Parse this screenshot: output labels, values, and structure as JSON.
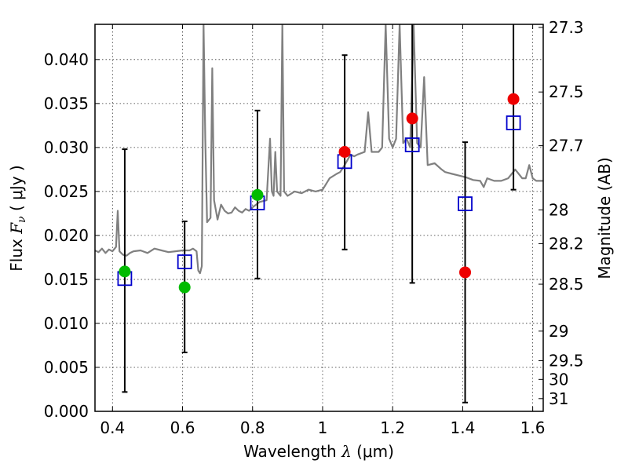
{
  "chart_data": {
    "type": "scatter",
    "title": "",
    "xlabel_parts": {
      "prefix": "Wavelength  ",
      "symbol": "λ",
      "unit": " (μm)"
    },
    "ylabel_parts": {
      "prefix": "Flux  ",
      "symbol": "F",
      "subscript": "ν",
      "unit": "  ( μJy )"
    },
    "y2label": "Magnitude (AB)",
    "xlim": [
      0.35,
      1.63
    ],
    "ylim": [
      0.0,
      0.044
    ],
    "grid": true,
    "colors": {
      "spectrum": "#808080",
      "model_points": "#0000cc",
      "obs_green": "#00bb00",
      "obs_red": "#ee0000",
      "errorbars": "#000000"
    },
    "x_ticks": [
      {
        "value": 0.4,
        "label": "0.4"
      },
      {
        "value": 0.6,
        "label": "0.6"
      },
      {
        "value": 0.8,
        "label": "0.8"
      },
      {
        "value": 1.0,
        "label": "1"
      },
      {
        "value": 1.2,
        "label": "1.2"
      },
      {
        "value": 1.4,
        "label": "1.4"
      },
      {
        "value": 1.6,
        "label": "1.6"
      }
    ],
    "y_ticks": [
      {
        "value": 0.0,
        "label": "0.000"
      },
      {
        "value": 0.005,
        "label": "0.005"
      },
      {
        "value": 0.01,
        "label": "0.010"
      },
      {
        "value": 0.015,
        "label": "0.015"
      },
      {
        "value": 0.02,
        "label": "0.020"
      },
      {
        "value": 0.025,
        "label": "0.025"
      },
      {
        "value": 0.03,
        "label": "0.030"
      },
      {
        "value": 0.035,
        "label": "0.035"
      },
      {
        "value": 0.04,
        "label": "0.040"
      }
    ],
    "y2_ticks": [
      {
        "mag": 27.3,
        "label": "27.3"
      },
      {
        "mag": 27.5,
        "label": "27.5"
      },
      {
        "mag": 27.7,
        "label": "27.7"
      },
      {
        "mag": 28.0,
        "label": "28"
      },
      {
        "mag": 28.2,
        "label": "28.2"
      },
      {
        "mag": 28.5,
        "label": "28.5"
      },
      {
        "mag": 29.0,
        "label": "29"
      },
      {
        "mag": 29.5,
        "label": "29.5"
      },
      {
        "mag": 30.0,
        "label": "30"
      },
      {
        "mag": 31.0,
        "label": "31"
      }
    ],
    "spectrum": [
      [
        0.35,
        0.0183
      ],
      [
        0.36,
        0.0181
      ],
      [
        0.37,
        0.0185
      ],
      [
        0.38,
        0.018
      ],
      [
        0.39,
        0.0184
      ],
      [
        0.4,
        0.0182
      ],
      [
        0.41,
        0.0187
      ],
      [
        0.415,
        0.0228
      ],
      [
        0.42,
        0.0182
      ],
      [
        0.43,
        0.0178
      ],
      [
        0.44,
        0.0177
      ],
      [
        0.45,
        0.018
      ],
      [
        0.46,
        0.0182
      ],
      [
        0.48,
        0.0183
      ],
      [
        0.5,
        0.018
      ],
      [
        0.52,
        0.0185
      ],
      [
        0.54,
        0.0183
      ],
      [
        0.56,
        0.0181
      ],
      [
        0.58,
        0.0182
      ],
      [
        0.6,
        0.0183
      ],
      [
        0.62,
        0.0183
      ],
      [
        0.63,
        0.0185
      ],
      [
        0.64,
        0.0182
      ],
      [
        0.645,
        0.016
      ],
      [
        0.65,
        0.0157
      ],
      [
        0.655,
        0.0165
      ],
      [
        0.66,
        0.044
      ],
      [
        0.665,
        0.031
      ],
      [
        0.67,
        0.0215
      ],
      [
        0.68,
        0.022
      ],
      [
        0.685,
        0.039
      ],
      [
        0.69,
        0.024
      ],
      [
        0.7,
        0.0218
      ],
      [
        0.71,
        0.0235
      ],
      [
        0.72,
        0.0228
      ],
      [
        0.73,
        0.0225
      ],
      [
        0.74,
        0.0226
      ],
      [
        0.75,
        0.0232
      ],
      [
        0.76,
        0.0228
      ],
      [
        0.77,
        0.0226
      ],
      [
        0.78,
        0.023
      ],
      [
        0.79,
        0.0228
      ],
      [
        0.8,
        0.0232
      ],
      [
        0.82,
        0.0238
      ],
      [
        0.84,
        0.024
      ],
      [
        0.85,
        0.031
      ],
      [
        0.855,
        0.025
      ],
      [
        0.86,
        0.0245
      ],
      [
        0.865,
        0.0295
      ],
      [
        0.87,
        0.025
      ],
      [
        0.88,
        0.0245
      ],
      [
        0.885,
        0.044
      ],
      [
        0.89,
        0.025
      ],
      [
        0.9,
        0.0245
      ],
      [
        0.92,
        0.025
      ],
      [
        0.94,
        0.0248
      ],
      [
        0.96,
        0.0252
      ],
      [
        0.98,
        0.025
      ],
      [
        1.0,
        0.0252
      ],
      [
        1.02,
        0.0265
      ],
      [
        1.04,
        0.027
      ],
      [
        1.05,
        0.0272
      ],
      [
        1.06,
        0.0278
      ],
      [
        1.07,
        0.0285
      ],
      [
        1.08,
        0.0292
      ],
      [
        1.09,
        0.029
      ],
      [
        1.1,
        0.0292
      ],
      [
        1.12,
        0.0295
      ],
      [
        1.13,
        0.034
      ],
      [
        1.14,
        0.0295
      ],
      [
        1.16,
        0.0295
      ],
      [
        1.17,
        0.03
      ],
      [
        1.18,
        0.044
      ],
      [
        1.19,
        0.031
      ],
      [
        1.2,
        0.03
      ],
      [
        1.21,
        0.031
      ],
      [
        1.22,
        0.044
      ],
      [
        1.23,
        0.0305
      ],
      [
        1.24,
        0.031
      ],
      [
        1.25,
        0.03
      ],
      [
        1.26,
        0.044
      ],
      [
        1.27,
        0.0305
      ],
      [
        1.28,
        0.03
      ],
      [
        1.29,
        0.038
      ],
      [
        1.3,
        0.028
      ],
      [
        1.32,
        0.0282
      ],
      [
        1.34,
        0.0275
      ],
      [
        1.35,
        0.0272
      ],
      [
        1.37,
        0.027
      ],
      [
        1.39,
        0.0268
      ],
      [
        1.41,
        0.0266
      ],
      [
        1.43,
        0.0263
      ],
      [
        1.45,
        0.0262
      ],
      [
        1.46,
        0.0255
      ],
      [
        1.47,
        0.0265
      ],
      [
        1.49,
        0.0262
      ],
      [
        1.51,
        0.0262
      ],
      [
        1.53,
        0.0265
      ],
      [
        1.55,
        0.0275
      ],
      [
        1.56,
        0.027
      ],
      [
        1.57,
        0.0265
      ],
      [
        1.58,
        0.0265
      ],
      [
        1.59,
        0.028
      ],
      [
        1.6,
        0.0265
      ],
      [
        1.61,
        0.0262
      ],
      [
        1.62,
        0.0262
      ],
      [
        1.63,
        0.0262
      ]
    ],
    "model_points": [
      {
        "x": 0.435,
        "y": 0.0151
      },
      {
        "x": 0.606,
        "y": 0.017
      },
      {
        "x": 0.814,
        "y": 0.0237
      },
      {
        "x": 1.063,
        "y": 0.0284
      },
      {
        "x": 1.256,
        "y": 0.0303
      },
      {
        "x": 1.407,
        "y": 0.0236
      },
      {
        "x": 1.545,
        "y": 0.0328
      }
    ],
    "observed_points": [
      {
        "x": 0.435,
        "y": 0.0159,
        "err_low": 0.0022,
        "err_high": 0.0298,
        "color": "green"
      },
      {
        "x": 0.606,
        "y": 0.0141,
        "err_low": 0.0067,
        "err_high": 0.0216,
        "color": "green"
      },
      {
        "x": 0.814,
        "y": 0.0246,
        "err_low": 0.0151,
        "err_high": 0.0342,
        "color": "green"
      },
      {
        "x": 1.063,
        "y": 0.0295,
        "err_low": 0.0184,
        "err_high": 0.0405,
        "color": "red"
      },
      {
        "x": 1.256,
        "y": 0.0333,
        "err_low": 0.0146,
        "err_high": 0.044,
        "color": "red"
      },
      {
        "x": 1.407,
        "y": 0.0158,
        "err_low": 0.001,
        "err_high": 0.0306,
        "color": "red"
      },
      {
        "x": 1.545,
        "y": 0.0355,
        "err_low": 0.0252,
        "err_high": 0.044,
        "color": "red"
      }
    ]
  }
}
